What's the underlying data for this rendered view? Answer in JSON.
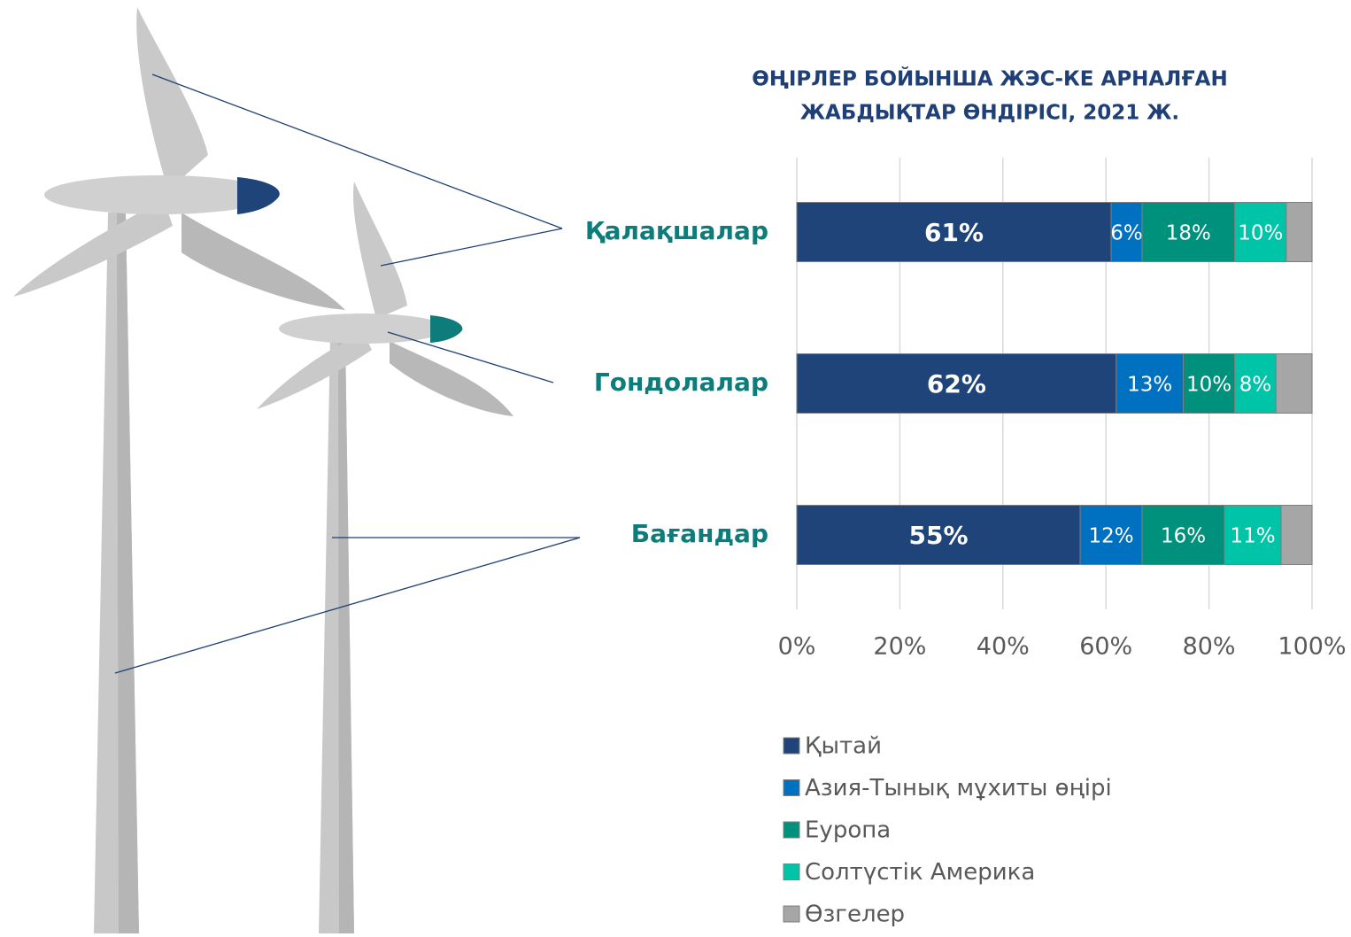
{
  "chart_data": {
    "type": "stacked-barh",
    "title": [
      "ӨҢІРЛЕР БОЙЫНША ЖЭС-КЕ АРНАЛҒАН",
      "ЖАБДЫҚТАР ӨНДІРІСІ, 2021 Ж."
    ],
    "categories": [
      "Қалақшалар",
      "Гондолалар",
      "Бағандар"
    ],
    "series": [
      {
        "name": "Қытай",
        "color": "#1f4479",
        "values": [
          61,
          62,
          55
        ],
        "value_labels": [
          "61%",
          "62%",
          "55%"
        ]
      },
      {
        "name": "Азия-Тынық мұхиты өңірі",
        "color": "#0070c0",
        "values": [
          6,
          13,
          12
        ],
        "value_labels": [
          "6%",
          "13%",
          "12%"
        ]
      },
      {
        "name": "Еуропа",
        "color": "#00917c",
        "values": [
          18,
          10,
          16
        ],
        "value_labels": [
          "18%",
          "10%",
          "16%"
        ]
      },
      {
        "name": "Солтүстік Америка",
        "color": "#00c4a7",
        "values": [
          10,
          8,
          11
        ],
        "value_labels": [
          "10%",
          "8%",
          "11%"
        ]
      },
      {
        "name": "Өзгелер",
        "color": "#a6a6a6",
        "values": [
          5,
          7,
          6
        ]
      }
    ],
    "xlim": [
      0,
      100
    ],
    "xticks": [
      {
        "value": 0,
        "label": "0%"
      },
      {
        "value": 20,
        "label": "20%"
      },
      {
        "value": 40,
        "label": "40%"
      },
      {
        "value": 60,
        "label": "60%"
      },
      {
        "value": 80,
        "label": "80%"
      },
      {
        "value": 100,
        "label": "100%"
      }
    ],
    "grid": true,
    "legend": "bottom"
  }
}
